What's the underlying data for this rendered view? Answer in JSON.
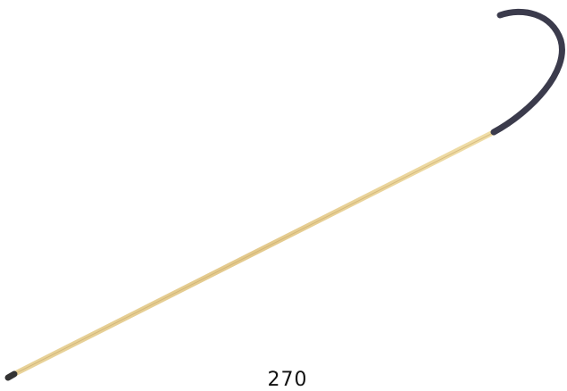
{
  "label": "270"
}
